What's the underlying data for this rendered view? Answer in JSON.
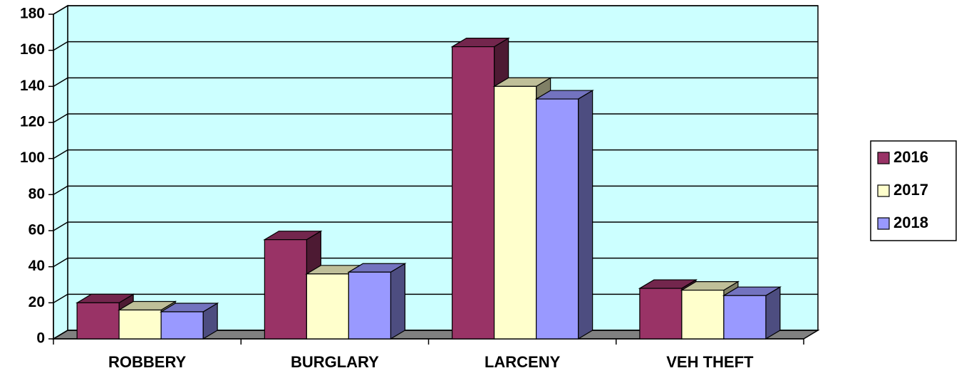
{
  "chart_data": {
    "type": "bar3d",
    "categories": [
      "ROBBERY",
      "BURGLARY",
      "LARCENY",
      "VEH THEFT"
    ],
    "series": [
      {
        "name": "2016",
        "color": "#993366",
        "values": [
          20,
          55,
          162,
          28
        ]
      },
      {
        "name": "2017",
        "color": "#ffffcc",
        "values": [
          16,
          36,
          140,
          27
        ]
      },
      {
        "name": "2018",
        "color": "#9999ff",
        "values": [
          15,
          37,
          133,
          24
        ]
      }
    ],
    "ylim": [
      0,
      180
    ],
    "yticks": [
      0,
      20,
      40,
      60,
      80,
      100,
      120,
      140,
      160,
      180
    ],
    "grid": true,
    "wall_color": "#ccffff",
    "floor_color": "#808080",
    "legend": "right"
  }
}
